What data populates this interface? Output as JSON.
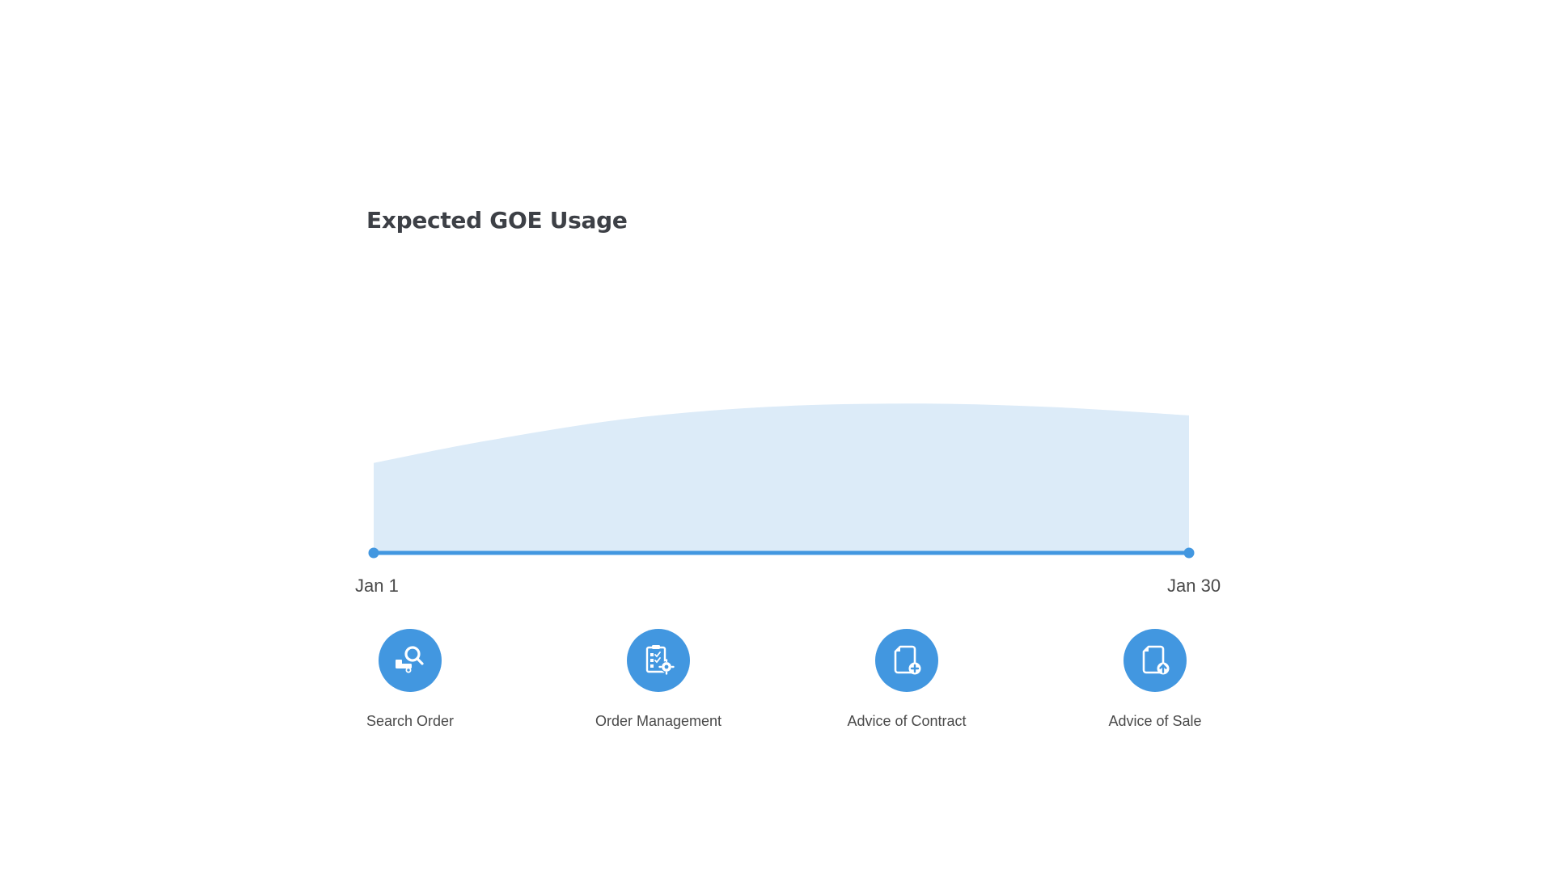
{
  "title": "Expected GOE Usage",
  "colors": {
    "accent": "#4297e0",
    "area_fill": "#dcebf8",
    "title": "#3d4046",
    "text": "#4a4a4a"
  },
  "chart_data": {
    "type": "area",
    "title": "Expected GOE Usage",
    "x_start_label": "Jan 1",
    "x_end_label": "Jan 30",
    "x": [
      1,
      5,
      10,
      15,
      20,
      25,
      30
    ],
    "values": [
      0.53,
      0.66,
      0.79,
      0.86,
      0.88,
      0.86,
      0.81
    ],
    "ylim": [
      0,
      1
    ],
    "grid": false,
    "legend": "none"
  },
  "features": [
    {
      "label": "Search Order",
      "icon": "search-order-icon"
    },
    {
      "label": "Order Management",
      "icon": "order-management-icon"
    },
    {
      "label": "Advice of Contract",
      "icon": "advice-of-contract-icon"
    },
    {
      "label": "Advice of Sale",
      "icon": "advice-of-sale-icon"
    }
  ]
}
